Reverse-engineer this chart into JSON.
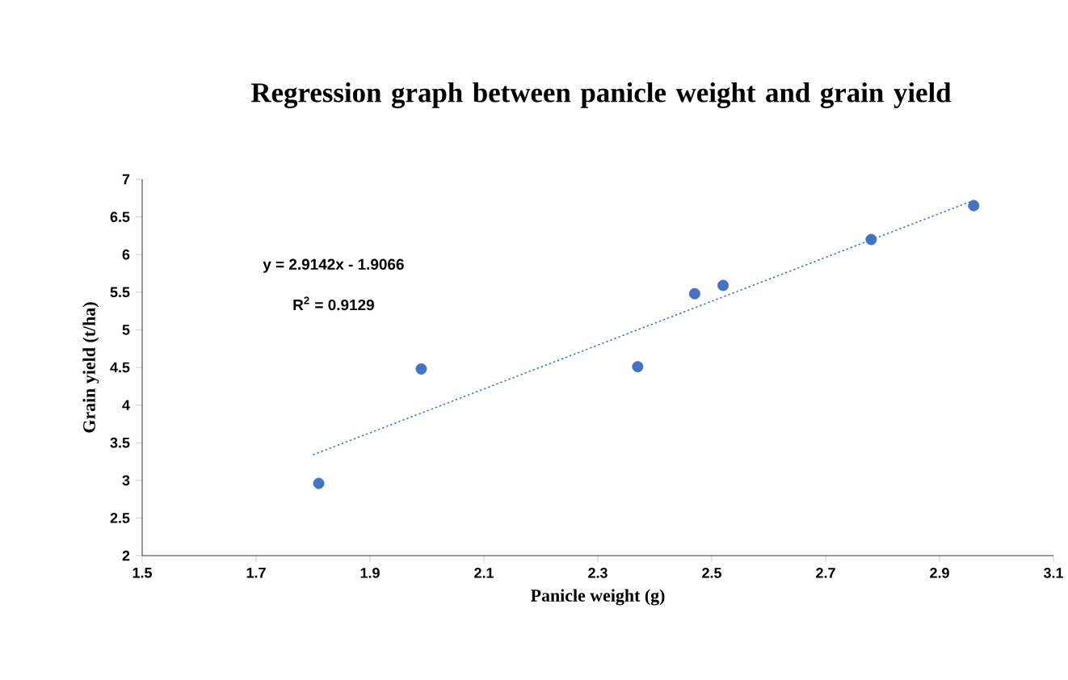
{
  "chart_data": {
    "type": "scatter",
    "title": "Regression graph between panicle weight and grain yield",
    "xlabel": "Panicle weight (g)",
    "ylabel": "Grain yield (t/ha)",
    "annotations": [
      "y = 2.9142x - 1.9066",
      "R$^{2}$ = 0.9129"
    ],
    "xlim": [
      1.5,
      3.1
    ],
    "xticks": [
      1.5,
      1.7,
      1.9,
      2.1,
      2.3,
      2.5,
      2.7,
      2.9,
      3.1
    ],
    "ylim": [
      2,
      7
    ],
    "yticks": [
      2,
      2.5,
      3,
      3.5,
      4,
      4.5,
      5,
      5.5,
      6,
      6.5,
      7
    ],
    "grid": false,
    "marker": "circle",
    "series": [
      {
        "color": "#4472c4",
        "x": [
          1.81,
          1.99,
          2.37,
          2.47,
          2.52,
          2.78,
          2.96
        ],
        "values": [
          2.96,
          4.48,
          4.51,
          5.48,
          5.59,
          6.2,
          6.65
        ]
      },
      {
        "type": "line",
        "color": "#4472c4",
        "line_style": "dotted",
        "marker": "none",
        "x": [
          1.8,
          2.96
        ],
        "values": [
          3.34,
          6.72
        ]
      }
    ]
  }
}
